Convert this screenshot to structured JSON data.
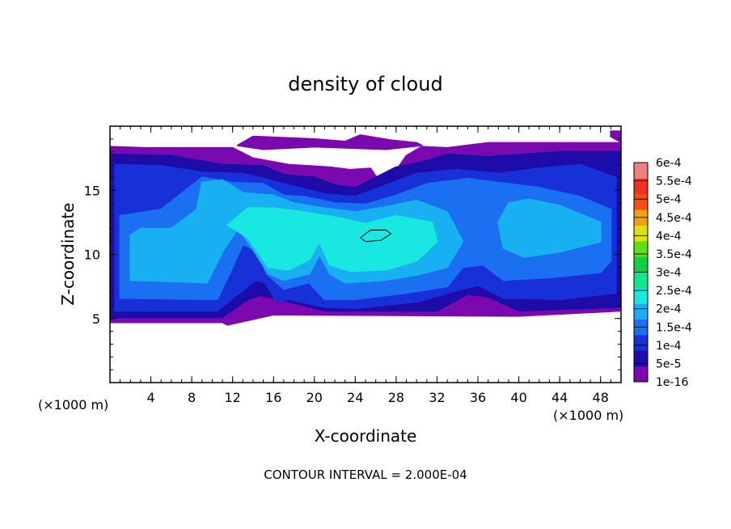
{
  "chart_data": {
    "type": "heatmap",
    "title": "density of cloud",
    "xlabel": "X-coordinate",
    "ylabel": "Z-coordinate",
    "x_unit_left": "(×1000 m)",
    "x_unit_right": "(×1000 m)",
    "xlim": [
      0,
      50
    ],
    "ylim": [
      0,
      20
    ],
    "x_ticks": [
      "4",
      "8",
      "12",
      "16",
      "20",
      "24",
      "28",
      "32",
      "36",
      "40",
      "44",
      "48"
    ],
    "y_ticks": [
      "5",
      "10",
      "15"
    ],
    "footer": "CONTOUR INTERVAL = 2.000E-04",
    "colorbar_labels": [
      "1e-16",
      "5e-5",
      "1e-4",
      "1.5e-4",
      "2e-4",
      "2.5e-4",
      "3e-4",
      "3.5e-4",
      "4e-4",
      "4.5e-4",
      "5e-4",
      "5.5e-4",
      "6e-4"
    ],
    "colorbar_colors": [
      "#7a0ab0",
      "#1d0ca8",
      "#1830d8",
      "#1a70f0",
      "#18b0f0",
      "#18e8e0",
      "#10e890",
      "#10d040",
      "#60e010",
      "#e0e010",
      "#f0a010",
      "#f05010",
      "#f03020",
      "#f08080"
    ],
    "levels": [
      {
        "name": "level-1e-16",
        "color": "#7a0ab0",
        "polygons": [
          [
            [
              0,
              4.7
            ],
            [
              11,
              4.7
            ],
            [
              11.5,
              4.5
            ],
            [
              16,
              5.3
            ],
            [
              40,
              5.2
            ],
            [
              50,
              5.6
            ],
            [
              50,
              18.7
            ],
            [
              37,
              18.7
            ],
            [
              33,
              18.3
            ],
            [
              30.5,
              18.4
            ],
            [
              29,
              17.7
            ],
            [
              27.7,
              16.2
            ],
            [
              27.1,
              15.3
            ],
            [
              26.5,
              15.5
            ],
            [
              25.5,
              16.7
            ],
            [
              23.5,
              16.6
            ],
            [
              21.5,
              16.8
            ],
            [
              17.5,
              17.0
            ],
            [
              14,
              17.5
            ],
            [
              12,
              18.3
            ],
            [
              3.5,
              18.3
            ],
            [
              0,
              18.4
            ]
          ],
          [
            [
              12.5,
              18.5
            ],
            [
              14,
              19.2
            ],
            [
              20,
              19.0
            ],
            [
              23,
              18.8
            ],
            [
              24.5,
              19.3
            ],
            [
              27.5,
              18.9
            ],
            [
              30,
              18.7
            ],
            [
              30.5,
              18.5
            ],
            [
              27,
              18.2
            ],
            [
              20,
              18.4
            ],
            [
              15,
              18.2
            ]
          ],
          [
            [
              49,
              19.6
            ],
            [
              49.9,
              19.6
            ],
            [
              49.9,
              18.8
            ],
            [
              49,
              19.2
            ]
          ]
        ]
      },
      {
        "name": "level-5e-5",
        "color": "#1d0ca8",
        "polygons": [
          [
            [
              0,
              5.1
            ],
            [
              11,
              5.1
            ],
            [
              13.5,
              6.5
            ],
            [
              14.7,
              6.8
            ],
            [
              16,
              6.6
            ],
            [
              21,
              5.6
            ],
            [
              32,
              5.6
            ],
            [
              35,
              6.9
            ],
            [
              37,
              6.7
            ],
            [
              40,
              5.6
            ],
            [
              50,
              5.9
            ],
            [
              50,
              18.0
            ],
            [
              44,
              18.0
            ],
            [
              37,
              17.6
            ],
            [
              33,
              17.8
            ],
            [
              31,
              17.3
            ],
            [
              28,
              16.8
            ],
            [
              26,
              16.0
            ],
            [
              24,
              15.2
            ],
            [
              22,
              15.4
            ],
            [
              20,
              16.0
            ],
            [
              17,
              16.2
            ],
            [
              15,
              16.9
            ],
            [
              11,
              17.0
            ],
            [
              6,
              17.7
            ],
            [
              0,
              17.8
            ]
          ]
        ]
      },
      {
        "name": "level-1e-4",
        "color": "#1830d8",
        "polygons": [
          [
            [
              0.5,
              5.6
            ],
            [
              10.5,
              5.6
            ],
            [
              12.5,
              6.9
            ],
            [
              14.3,
              8.0
            ],
            [
              15.2,
              7.8
            ],
            [
              16.3,
              6.3
            ],
            [
              17.5,
              6.5
            ],
            [
              21,
              5.9
            ],
            [
              24,
              5.8
            ],
            [
              30,
              6.3
            ],
            [
              34,
              7.2
            ],
            [
              36,
              7.6
            ],
            [
              38.5,
              6.6
            ],
            [
              44,
              6.5
            ],
            [
              49.5,
              7.0
            ],
            [
              49.5,
              16.0
            ],
            [
              46,
              17.0
            ],
            [
              42,
              16.7
            ],
            [
              38,
              16.3
            ],
            [
              34,
              16.6
            ],
            [
              30,
              16.3
            ],
            [
              27,
              15.4
            ],
            [
              24,
              14.5
            ],
            [
              21,
              14.7
            ],
            [
              17,
              15.5
            ],
            [
              13,
              16.3
            ],
            [
              9,
              16.4
            ],
            [
              5,
              16.9
            ],
            [
              0.5,
              17.0
            ]
          ]
        ]
      },
      {
        "name": "level-1.5e-4",
        "color": "#1a70f0",
        "polygons": [
          [
            [
              1,
              6.6
            ],
            [
              10.5,
              6.5
            ],
            [
              12,
              9.0
            ],
            [
              13,
              10.8
            ],
            [
              14.5,
              10.2
            ],
            [
              15.3,
              8.5
            ],
            [
              17,
              7.3
            ],
            [
              19.5,
              7.8
            ],
            [
              21,
              6.5
            ],
            [
              24,
              6.5
            ],
            [
              29,
              7.0
            ],
            [
              33,
              7.5
            ],
            [
              34.5,
              9.0
            ],
            [
              36.5,
              9.2
            ],
            [
              38.5,
              8.0
            ],
            [
              43,
              8.2
            ],
            [
              48,
              8.6
            ],
            [
              49,
              9.5
            ],
            [
              49,
              13.5
            ],
            [
              46,
              14.5
            ],
            [
              42,
              15.2
            ],
            [
              38,
              15.6
            ],
            [
              35,
              15.9
            ],
            [
              31,
              15.5
            ],
            [
              28,
              14.6
            ],
            [
              25,
              13.9
            ],
            [
              22,
              14.0
            ],
            [
              19,
              14.5
            ],
            [
              17,
              14.6
            ],
            [
              15,
              15.5
            ],
            [
              12,
              15.6
            ],
            [
              9,
              16.0
            ],
            [
              5,
              13.5
            ],
            [
              1,
              13.0
            ]
          ]
        ]
      },
      {
        "name": "level-2e-4",
        "color": "#18b0f0",
        "polygons": [
          [
            [
              2,
              8.0
            ],
            [
              9.5,
              7.8
            ],
            [
              11,
              10.2
            ],
            [
              12.5,
              12.0
            ],
            [
              13.5,
              11.0
            ],
            [
              15.5,
              8.5
            ],
            [
              17,
              8.0
            ],
            [
              19.5,
              8.5
            ],
            [
              20.5,
              10.0
            ],
            [
              21.5,
              8.5
            ],
            [
              23,
              7.8
            ],
            [
              27,
              8.0
            ],
            [
              30,
              8.4
            ],
            [
              33,
              9.0
            ],
            [
              34.5,
              11.0
            ],
            [
              33,
              13.3
            ],
            [
              30,
              14.2
            ],
            [
              27,
              13.7
            ],
            [
              24,
              13.3
            ],
            [
              21,
              13.6
            ],
            [
              18,
              14.0
            ],
            [
              16,
              14.6
            ],
            [
              13,
              14.8
            ],
            [
              11,
              15.8
            ],
            [
              9,
              15.6
            ],
            [
              8.5,
              13.5
            ],
            [
              6,
              12.0
            ],
            [
              3,
              12.0
            ],
            [
              2,
              11.5
            ]
          ],
          [
            [
              38.5,
              10.5
            ],
            [
              40.5,
              9.8
            ],
            [
              44,
              10.2
            ],
            [
              48,
              11.0
            ],
            [
              48,
              12.5
            ],
            [
              44,
              13.8
            ],
            [
              41,
              14.3
            ],
            [
              39,
              14.0
            ],
            [
              38,
              12.5
            ]
          ]
        ]
      },
      {
        "name": "level-2.5e-4",
        "color": "#18e8e0",
        "polygons": [
          [
            [
              11.5,
              12.3
            ],
            [
              13.5,
              11.3
            ],
            [
              15.5,
              9.0
            ],
            [
              17.5,
              8.8
            ],
            [
              19.5,
              9.6
            ],
            [
              20.5,
              11.0
            ],
            [
              21.5,
              9.2
            ],
            [
              23.5,
              8.7
            ],
            [
              27,
              8.8
            ],
            [
              30,
              9.5
            ],
            [
              32,
              11.0
            ],
            [
              31.5,
              12.5
            ],
            [
              28,
              13.0
            ],
            [
              25,
              12.4
            ],
            [
              22,
              12.9
            ],
            [
              19,
              13.3
            ],
            [
              16,
              13.6
            ],
            [
              13.5,
              13.6
            ]
          ]
        ]
      }
    ],
    "annotations": [
      {
        "type": "contour-line",
        "label": "",
        "polygon": [
          [
            24.5,
            11.3
          ],
          [
            25.5,
            11.9
          ],
          [
            27,
            11.9
          ],
          [
            27.5,
            11.6
          ],
          [
            26.5,
            11.1
          ],
          [
            25,
            11.0
          ]
        ]
      }
    ]
  }
}
